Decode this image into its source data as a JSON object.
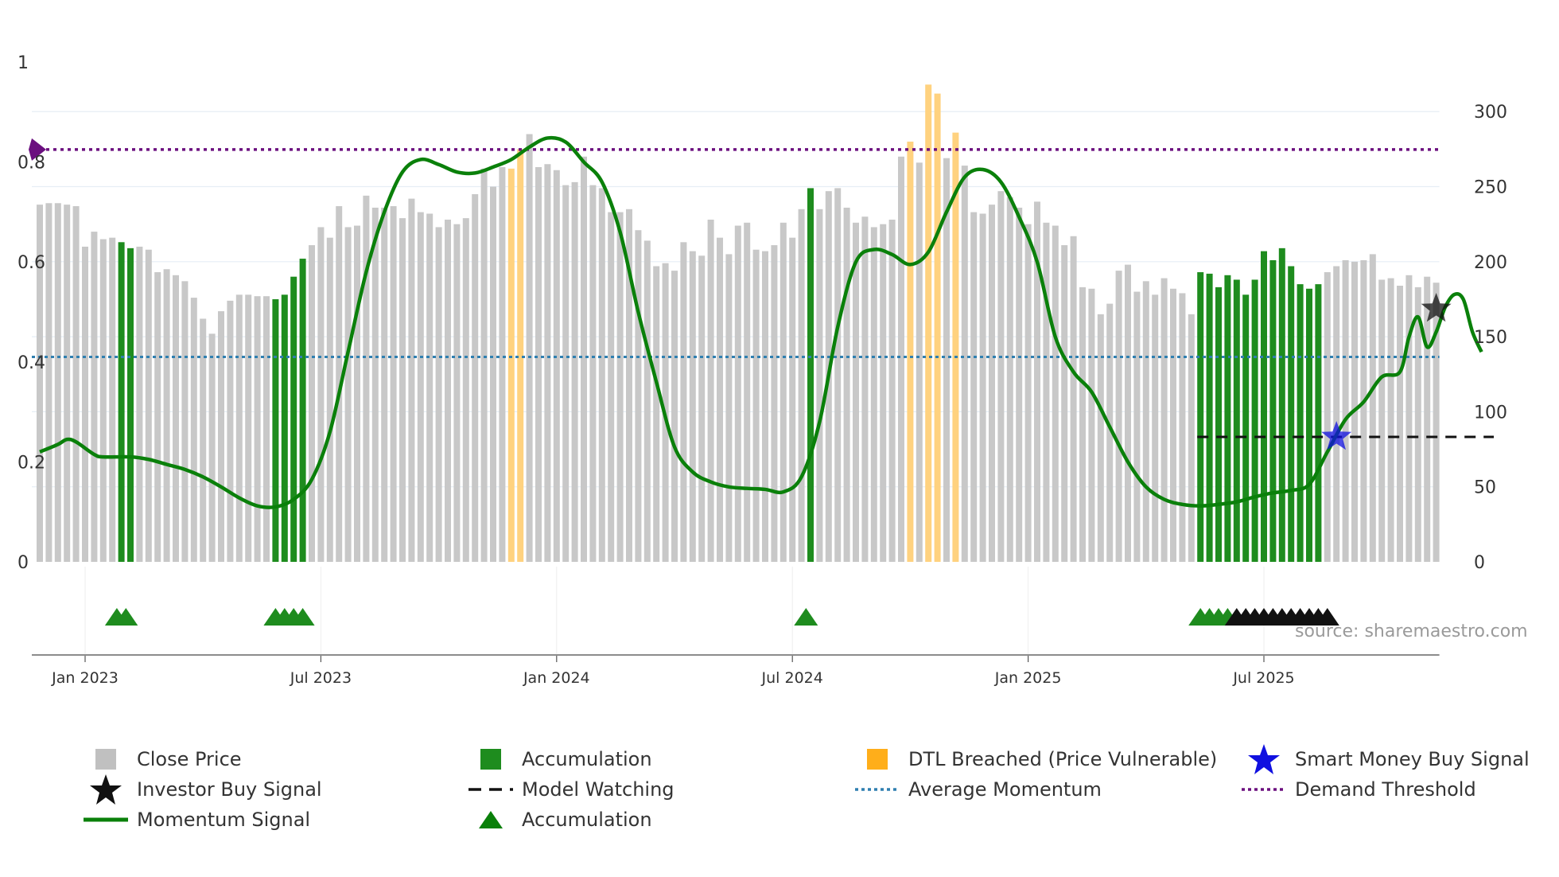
{
  "chart_data": {
    "type": "bar+line",
    "source": "source: sharemaestro.com",
    "left_axis": {
      "ticks": [
        "0",
        "0.2",
        "0.4",
        "0.6",
        "0.8",
        "1"
      ],
      "range": [
        0,
        1
      ]
    },
    "right_axis": {
      "ticks": [
        "0",
        "50",
        "100",
        "150",
        "200",
        "250",
        "300"
      ],
      "range": [
        0,
        333
      ]
    },
    "x_axis": {
      "ticks": [
        "Jan 2023",
        "Jul 2023",
        "Jan 2024",
        "Jul 2024",
        "Jan 2025",
        "Jul 2025"
      ],
      "tick_weeks": [
        5,
        31,
        57,
        83,
        109,
        135
      ]
    },
    "close_price": [
      238,
      239,
      239,
      238,
      237,
      210,
      220,
      215,
      216,
      213,
      209,
      210,
      208,
      193,
      195,
      191,
      187,
      176,
      162,
      152,
      167,
      174,
      178,
      178,
      177,
      177,
      175,
      178,
      190,
      202,
      211,
      223,
      216,
      237,
      223,
      224,
      244,
      236,
      236,
      237,
      229,
      242,
      233,
      232,
      223,
      228,
      225,
      229,
      245,
      262,
      250,
      263,
      262,
      275,
      285,
      263,
      265,
      261,
      251,
      253,
      270,
      251,
      249,
      233,
      233,
      235,
      221,
      214,
      197,
      199,
      194,
      213,
      207,
      204,
      228,
      216,
      205,
      224,
      226,
      208,
      207,
      211,
      226,
      216,
      235,
      249,
      235,
      247,
      249,
      236,
      226,
      230,
      223,
      225,
      228,
      270,
      280,
      266,
      318,
      312,
      269,
      286,
      264,
      233,
      232,
      238,
      247,
      243,
      236,
      225,
      240,
      226,
      224,
      211,
      217,
      183,
      182,
      165,
      172,
      194,
      198,
      180,
      187,
      178,
      189,
      182,
      179,
      165,
      193,
      192,
      183,
      191,
      188,
      178,
      188,
      207,
      201,
      209,
      197,
      185,
      182,
      185,
      193,
      197,
      201,
      200,
      201,
      205,
      188,
      189,
      184,
      191,
      183,
      190,
      186
    ],
    "bar_category_legend": [
      "Close Price",
      "Accumulation",
      "DTL Breached (Price Vulnerable)"
    ],
    "accumulation_weeks": [
      9,
      10,
      26,
      27,
      28,
      29,
      85,
      128,
      129,
      130,
      131,
      132,
      133,
      134,
      135,
      136,
      137,
      138,
      139,
      140,
      141
    ],
    "dtl_breached_weeks": [
      52,
      53,
      96,
      98,
      99,
      101
    ],
    "momentum_signal": [
      [
        0,
        0.22
      ],
      [
        2,
        0.235
      ],
      [
        3,
        0.245
      ],
      [
        4,
        0.24
      ],
      [
        6,
        0.215
      ],
      [
        7,
        0.21
      ],
      [
        10,
        0.21
      ],
      [
        12,
        0.205
      ],
      [
        14,
        0.195
      ],
      [
        16,
        0.185
      ],
      [
        18,
        0.17
      ],
      [
        20,
        0.15
      ],
      [
        22,
        0.128
      ],
      [
        24,
        0.112
      ],
      [
        26,
        0.11
      ],
      [
        28,
        0.125
      ],
      [
        30,
        0.165
      ],
      [
        32,
        0.26
      ],
      [
        34,
        0.42
      ],
      [
        36,
        0.58
      ],
      [
        38,
        0.7
      ],
      [
        40,
        0.78
      ],
      [
        42,
        0.805
      ],
      [
        44,
        0.795
      ],
      [
        46,
        0.78
      ],
      [
        48,
        0.778
      ],
      [
        50,
        0.79
      ],
      [
        52,
        0.805
      ],
      [
        54,
        0.83
      ],
      [
        56,
        0.848
      ],
      [
        58,
        0.84
      ],
      [
        60,
        0.8
      ],
      [
        62,
        0.76
      ],
      [
        64,
        0.66
      ],
      [
        66,
        0.5
      ],
      [
        68,
        0.36
      ],
      [
        70,
        0.23
      ],
      [
        72,
        0.18
      ],
      [
        74,
        0.16
      ],
      [
        76,
        0.15
      ],
      [
        78,
        0.147
      ],
      [
        80,
        0.145
      ],
      [
        82,
        0.14
      ],
      [
        84,
        0.17
      ],
      [
        86,
        0.28
      ],
      [
        88,
        0.47
      ],
      [
        90,
        0.6
      ],
      [
        92,
        0.625
      ],
      [
        94,
        0.615
      ],
      [
        96,
        0.595
      ],
      [
        98,
        0.62
      ],
      [
        100,
        0.7
      ],
      [
        102,
        0.77
      ],
      [
        104,
        0.785
      ],
      [
        106,
        0.76
      ],
      [
        108,
        0.69
      ],
      [
        110,
        0.6
      ],
      [
        112,
        0.45
      ],
      [
        114,
        0.38
      ],
      [
        116,
        0.34
      ],
      [
        118,
        0.27
      ],
      [
        120,
        0.2
      ],
      [
        122,
        0.15
      ],
      [
        124,
        0.125
      ],
      [
        126,
        0.115
      ],
      [
        128,
        0.112
      ],
      [
        130,
        0.115
      ],
      [
        132,
        0.12
      ],
      [
        134,
        0.13
      ],
      [
        136,
        0.138
      ],
      [
        138,
        0.143
      ],
      [
        140,
        0.155
      ],
      [
        142,
        0.22
      ],
      [
        144,
        0.285
      ],
      [
        146,
        0.32
      ],
      [
        148,
        0.37
      ],
      [
        150,
        0.38
      ],
      [
        151,
        0.45
      ],
      [
        152,
        0.49
      ],
      [
        153,
        0.43
      ],
      [
        154,
        0.46
      ],
      [
        155,
        0.51
      ],
      [
        156,
        0.535
      ],
      [
        157,
        0.525
      ],
      [
        158,
        0.46
      ],
      [
        159,
        0.42
      ]
    ],
    "average_momentum": 0.41,
    "demand_threshold": 0.825,
    "model_watching_level": 0.25,
    "model_watching_range": [
      128,
      160
    ],
    "smart_money_buy_signal": {
      "week": 143,
      "value": 0.25
    },
    "investor_buy_signal": {
      "week": 154,
      "value": 0.5
    },
    "accumulation_marker_weeks": [
      8.5,
      9.5,
      26,
      27,
      28,
      29,
      84.5,
      128,
      129,
      130,
      131
    ],
    "investor_marker_weeks": [
      132,
      133,
      134,
      135,
      136,
      137,
      138,
      139,
      140,
      141,
      142
    ],
    "colors": {
      "close_price": "#c8c8c8",
      "accumulation": "#1e8c1e",
      "dtl_breached": "#ffd27f",
      "momentum": "#0a800a",
      "average_momentum": "#2f7fb0",
      "demand_threshold": "#6b0f7f",
      "smart_money": "#1010e0",
      "investor": "#111111"
    }
  },
  "legend": [
    {
      "label": "Close Price",
      "icon": "gray-square"
    },
    {
      "label": "Accumulation",
      "icon": "green-square"
    },
    {
      "label": "DTL Breached (Price Vulnerable)",
      "icon": "orange-square"
    },
    {
      "label": "Smart Money Buy Signal",
      "icon": "blue-star"
    },
    {
      "label": "Investor Buy Signal",
      "icon": "black-star"
    },
    {
      "label": "Model Watching",
      "icon": "dashed-line"
    },
    {
      "label": "Average Momentum",
      "icon": "dotted-blue-line"
    },
    {
      "label": "Demand Threshold",
      "icon": "dotted-purple-line"
    },
    {
      "label": "Momentum Signal",
      "icon": "green-line"
    },
    {
      "label": "Accumulation",
      "icon": "green-triangle"
    }
  ]
}
